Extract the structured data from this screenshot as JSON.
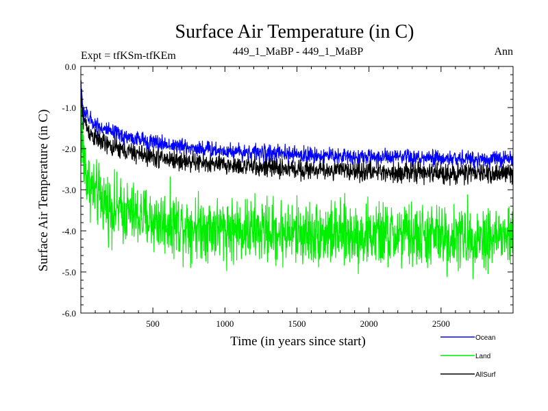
{
  "chart_data": {
    "type": "line",
    "title": "Surface Air Temperature (in C)",
    "subtitle_left": "Expt = tfKSm-tfKEm",
    "subtitle_center": "449_1_MaBP - 449_1_MaBP",
    "subtitle_right": "Ann",
    "xlabel": "Time (in years since start)",
    "ylabel": "Surface Air Temperature (in C)",
    "xlim": [
      0,
      3000
    ],
    "ylim": [
      -6.0,
      0.0
    ],
    "x_ticks": [
      500,
      1000,
      1500,
      2000,
      2500
    ],
    "x_tick_labels": [
      "500",
      "1000",
      "1500",
      "2000",
      "2500"
    ],
    "y_ticks": [
      0.0,
      -1.0,
      -2.0,
      -3.0,
      -4.0,
      -5.0,
      -6.0
    ],
    "y_tick_labels": [
      "0.0",
      "-1.0",
      "-2.0",
      "-3.0",
      "-4.0",
      "-5.0",
      "-6.0"
    ],
    "legend_position": "bottom-right, outside plot",
    "series": [
      {
        "name": "Ocean",
        "color": "#0000ff",
        "noise": 0.14,
        "trend": [
          [
            0,
            -0.35
          ],
          [
            10,
            -1.0
          ],
          [
            50,
            -1.25
          ],
          [
            100,
            -1.4
          ],
          [
            200,
            -1.6
          ],
          [
            300,
            -1.7
          ],
          [
            500,
            -1.85
          ],
          [
            700,
            -1.95
          ],
          [
            1000,
            -2.05
          ],
          [
            1500,
            -2.15
          ],
          [
            2000,
            -2.2
          ],
          [
            2500,
            -2.25
          ],
          [
            3000,
            -2.25
          ]
        ]
      },
      {
        "name": "Land",
        "color": "#00ee00",
        "noise": 0.55,
        "trend": [
          [
            0,
            -1.0
          ],
          [
            10,
            -2.0
          ],
          [
            50,
            -2.8
          ],
          [
            100,
            -3.1
          ],
          [
            200,
            -3.4
          ],
          [
            300,
            -3.55
          ],
          [
            500,
            -3.75
          ],
          [
            700,
            -3.85
          ],
          [
            1000,
            -3.95
          ],
          [
            1500,
            -4.05
          ],
          [
            2000,
            -4.1
          ],
          [
            2500,
            -4.15
          ],
          [
            3000,
            -4.15
          ]
        ]
      },
      {
        "name": "AllSurf",
        "color": "#000000",
        "noise": 0.17,
        "trend": [
          [
            0,
            -0.5
          ],
          [
            10,
            -1.15
          ],
          [
            50,
            -1.55
          ],
          [
            100,
            -1.75
          ],
          [
            200,
            -1.95
          ],
          [
            300,
            -2.05
          ],
          [
            500,
            -2.2
          ],
          [
            700,
            -2.3
          ],
          [
            1000,
            -2.4
          ],
          [
            1500,
            -2.5
          ],
          [
            2000,
            -2.55
          ],
          [
            2500,
            -2.6
          ],
          [
            3000,
            -2.6
          ]
        ]
      }
    ]
  }
}
